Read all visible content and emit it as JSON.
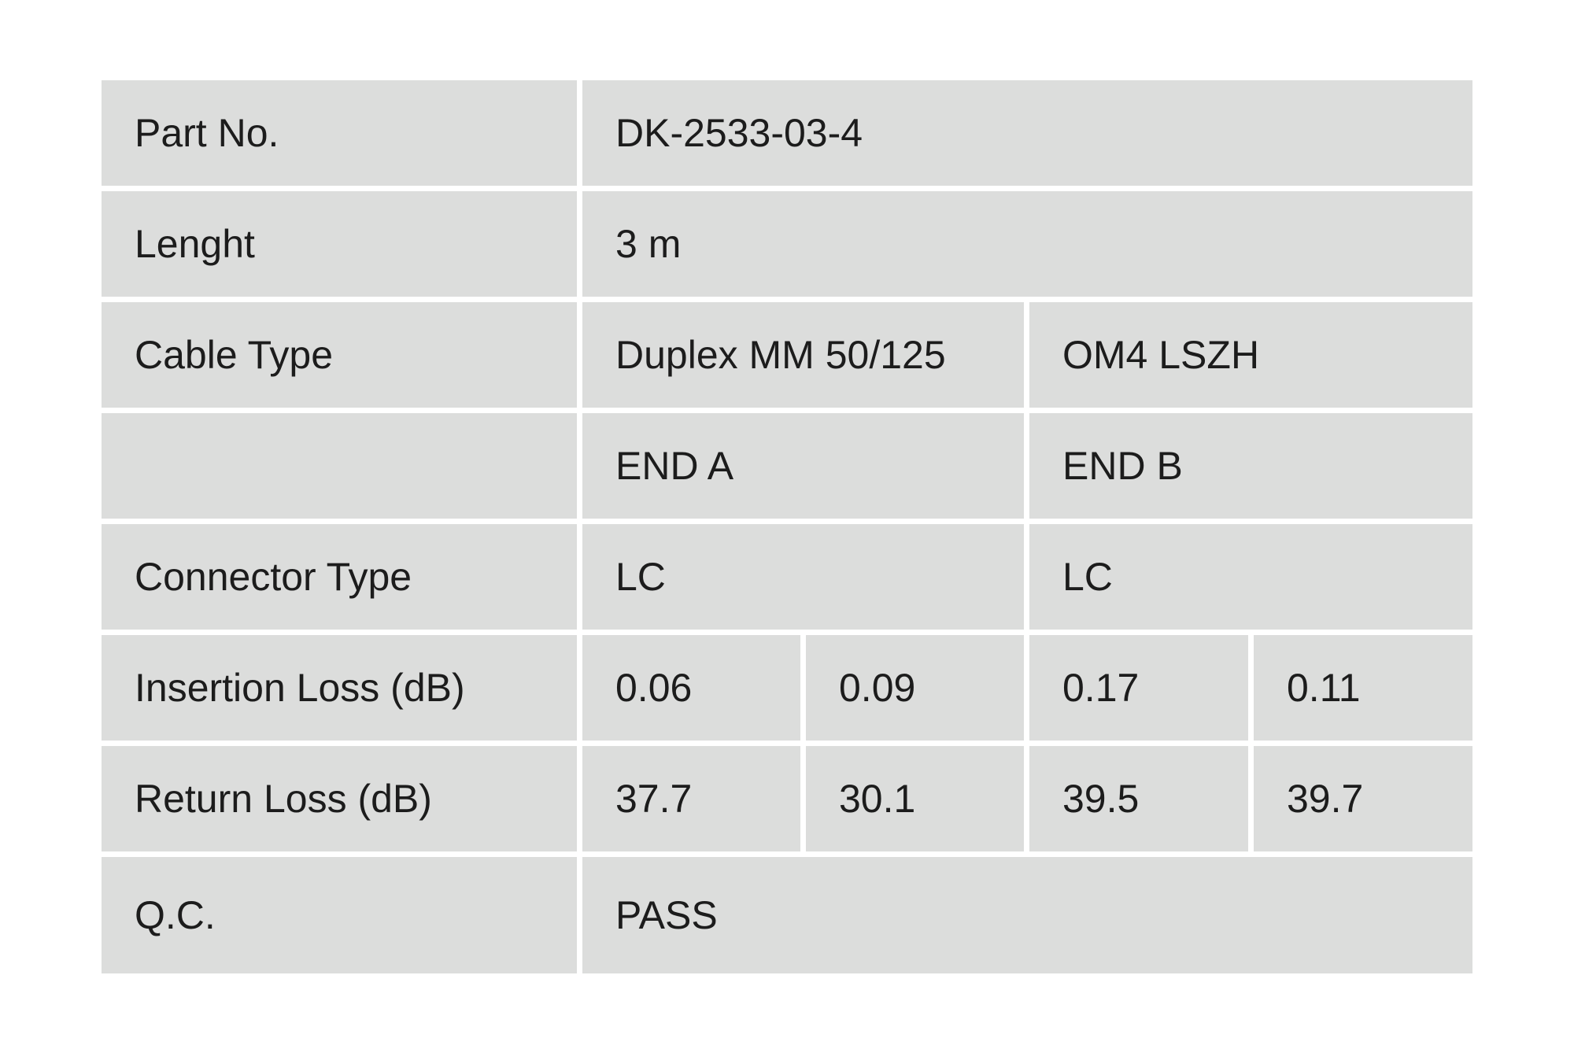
{
  "rows": {
    "part_no": {
      "label": "Part No.",
      "value": "DK-2533-03-4"
    },
    "length": {
      "label": "Lenght",
      "value": "3 m"
    },
    "cable_type": {
      "label": "Cable Type",
      "value_a": "Duplex MM 50/125",
      "value_b": "OM4 LSZH"
    },
    "ends": {
      "label": "",
      "end_a": "END A",
      "end_b": "END B"
    },
    "connector_type": {
      "label": "Connector Type",
      "end_a": "LC",
      "end_b": "LC"
    },
    "insertion_loss": {
      "label": "Insertion Loss (dB)",
      "values": [
        "0.06",
        "0.09",
        "0.17",
        "0.11"
      ]
    },
    "return_loss": {
      "label": "Return Loss (dB)",
      "values": [
        "37.7",
        "30.1",
        "39.5",
        "39.7"
      ]
    },
    "qc": {
      "label": "Q.C.",
      "value": "PASS"
    }
  },
  "colors": {
    "cell_background": "#dcdddc",
    "text": "#1c1c1c"
  }
}
